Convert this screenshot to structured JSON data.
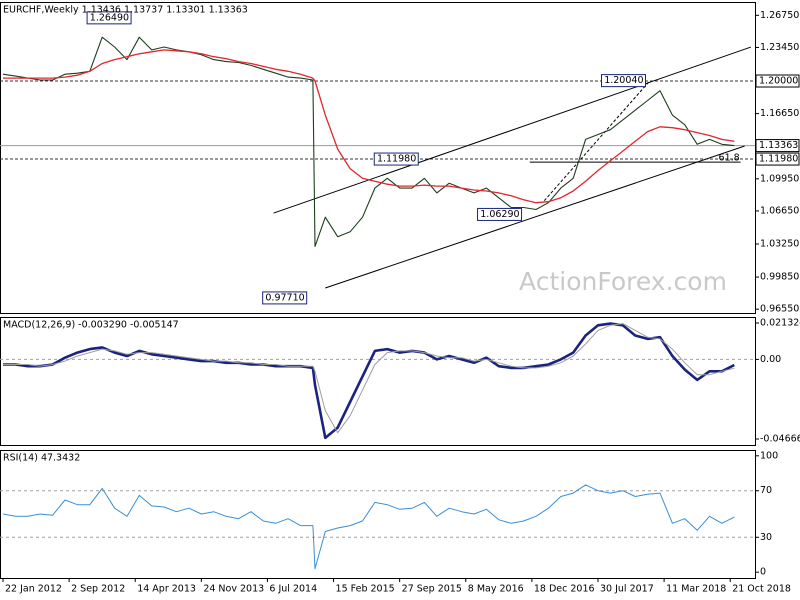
{
  "chart_data": [
    {
      "type": "line",
      "title": "EURCHF,Weekly  1.13436 1.13737 1.13301 1.13363",
      "watermark": "ActionForex.com",
      "x": [
        0,
        6,
        12,
        18,
        24,
        30,
        36,
        42,
        48,
        54,
        60,
        66,
        72,
        78,
        84,
        90,
        96,
        102,
        108,
        114,
        120,
        126,
        132,
        138,
        144,
        150,
        151,
        156,
        162,
        168,
        174,
        180,
        186,
        192,
        198,
        204,
        210,
        216,
        222,
        228,
        234,
        240,
        246,
        252,
        258,
        264,
        270,
        276,
        282,
        288,
        294,
        300,
        306,
        312,
        318,
        324,
        330,
        336,
        342,
        348,
        354
      ],
      "xlim": [
        -1.45,
        364
      ],
      "ylim": [
        0.9616,
        1.2812
      ],
      "yticks": [
        {
          "value": 1.2675,
          "label": "1.26750"
        },
        {
          "value": 1.2345,
          "label": "1.23450"
        },
        {
          "value": 1.1665,
          "label": "1.16650"
        },
        {
          "value": 1.0995,
          "label": "1.09950"
        },
        {
          "value": 1.0665,
          "label": "1.06650"
        },
        {
          "value": 1.0325,
          "label": "1.03250"
        },
        {
          "value": 0.9985,
          "label": "0.99850"
        },
        {
          "value": 0.9655,
          "label": "0.96550"
        }
      ],
      "markers": [
        {
          "value": 1.2,
          "label": "1.20000",
          "line": "dashed"
        },
        {
          "value": 1.13363,
          "label": "1.13363",
          "line": "solid"
        },
        {
          "value": 1.1198,
          "label": "1.11980",
          "line": "dashed"
        }
      ],
      "series": [
        {
          "color": "#1e3d1e",
          "values": [
            1.207,
            1.205,
            1.203,
            1.201,
            1.201,
            1.207,
            1.208,
            1.21,
            1.245,
            1.235,
            1.222,
            1.245,
            1.232,
            1.235,
            1.232,
            1.23,
            1.227,
            1.222,
            1.22,
            1.219,
            1.216,
            1.212,
            1.208,
            1.204,
            1.203,
            1.201,
            1.03,
            1.06,
            1.04,
            1.045,
            1.06,
            1.09,
            1.1,
            1.09,
            1.09,
            1.1,
            1.085,
            1.095,
            1.09,
            1.085,
            1.09,
            1.08,
            1.07,
            1.07,
            1.068,
            1.075,
            1.09,
            1.1,
            1.14,
            1.145,
            1.15,
            1.16,
            1.17,
            1.18,
            1.19,
            1.165,
            1.155,
            1.135,
            1.14,
            1.135,
            1.13363
          ]
        },
        {
          "color": "#e0282e",
          "values": [
            1.203,
            1.203,
            1.203,
            1.203,
            1.203,
            1.204,
            1.206,
            1.21,
            1.218,
            1.222,
            1.225,
            1.228,
            1.23,
            1.232,
            1.231,
            1.23,
            1.228,
            1.225,
            1.223,
            1.22,
            1.218,
            1.215,
            1.212,
            1.21,
            1.207,
            1.203,
            1.2,
            1.165,
            1.13,
            1.11,
            1.1,
            1.097,
            1.094,
            1.092,
            1.092,
            1.093,
            1.092,
            1.092,
            1.09,
            1.088,
            1.087,
            1.085,
            1.082,
            1.078,
            1.075,
            1.076,
            1.08,
            1.087,
            1.097,
            1.108,
            1.118,
            1.128,
            1.138,
            1.148,
            1.153,
            1.152,
            1.15,
            1.147,
            1.144,
            1.14,
            1.138
          ]
        }
      ],
      "trendlines": [
        {
          "style": "solid",
          "points": [
            [
              131,
              1.0643
            ],
            [
              362,
              1.2349
            ]
          ]
        },
        {
          "style": "solid",
          "points": [
            [
              156,
              0.9873
            ],
            [
              359,
              1.1332
            ]
          ]
        },
        {
          "style": "dashed",
          "points": [
            [
              262,
              1.077
            ],
            [
              313,
              1.2
            ]
          ]
        }
      ],
      "fib_line": {
        "label": "61.8",
        "price": 1.1167,
        "x": [
          255,
          357
        ]
      },
      "annotations": [
        {
          "value": 1.2649,
          "label": "1.26490",
          "x": 62
        },
        {
          "value": 1.1198,
          "label": "1.11980",
          "x": 201
        },
        {
          "value": 1.2004,
          "label": "1.20040",
          "x": 311
        },
        {
          "value": 1.0629,
          "label": "1.06290",
          "x": 251
        },
        {
          "value": 0.9771,
          "label": "0.97710",
          "x": 147
        }
      ]
    },
    {
      "type": "line",
      "title": "MACD(12,26,9) -0.003290 -0.005147",
      "x": [
        0,
        6,
        12,
        18,
        24,
        30,
        36,
        42,
        48,
        54,
        60,
        66,
        72,
        78,
        84,
        90,
        96,
        102,
        108,
        114,
        120,
        126,
        132,
        138,
        144,
        150,
        151,
        156,
        162,
        168,
        174,
        180,
        186,
        192,
        198,
        204,
        210,
        216,
        222,
        228,
        234,
        240,
        246,
        252,
        258,
        264,
        270,
        276,
        282,
        288,
        294,
        300,
        306,
        312,
        318,
        324,
        330,
        336,
        342,
        348,
        354
      ],
      "xlim": [
        -1.45,
        364
      ],
      "ylim": [
        -0.05018,
        0.02484
      ],
      "yticks": [
        0.021324,
        {
          "value": 0,
          "label": "0.00"
        },
        -0.046663
      ],
      "levels": [
        0
      ],
      "series": [
        {
          "color": "#1a237e",
          "values": [
            -0.003,
            -0.003,
            -0.004,
            -0.004,
            -0.003,
            0.001,
            0.004,
            0.006,
            0.007,
            0.004,
            0.002,
            0.005,
            0.003,
            0.002,
            0.001,
            0,
            -0.001,
            -0.001,
            -0.002,
            -0.002,
            -0.003,
            -0.003,
            -0.004,
            -0.004,
            -0.004,
            -0.005,
            -0.015,
            -0.046,
            -0.04,
            -0.025,
            -0.01,
            0.005,
            0.006,
            0.004,
            0.005,
            0.004,
            0,
            0.002,
            0,
            -0.002,
            0.001,
            -0.004,
            -0.005,
            -0.005,
            -0.004,
            -0.003,
            0,
            0.004,
            0.014,
            0.02,
            0.021,
            0.02,
            0.014,
            0.012,
            0.013,
            0.002,
            -0.006,
            -0.012,
            -0.007,
            -0.007,
            -0.00329
          ]
        },
        {
          "color": "#9e9e9e",
          "values": [
            -0.003,
            -0.003,
            -0.003,
            -0.004,
            -0.003,
            -0.001,
            0.002,
            0.004,
            0.006,
            0.005,
            0.003,
            0.004,
            0.004,
            0.003,
            0.002,
            0.001,
            0,
            -0.001,
            -0.001,
            -0.002,
            -0.002,
            -0.003,
            -0.003,
            -0.004,
            -0.004,
            -0.004,
            -0.007,
            -0.03,
            -0.043,
            -0.033,
            -0.018,
            -0.003,
            0.004,
            0.005,
            0.005,
            0.004,
            0.002,
            0.001,
            0.001,
            -0.001,
            0,
            -0.002,
            -0.004,
            -0.005,
            -0.005,
            -0.004,
            -0.002,
            0.002,
            0.009,
            0.017,
            0.02,
            0.021,
            0.017,
            0.013,
            0.012,
            0.006,
            -0.002,
            -0.009,
            -0.009,
            -0.007,
            -0.005147
          ]
        }
      ]
    },
    {
      "type": "line",
      "title": "RSI(14) 47.3432",
      "x": [
        0,
        6,
        12,
        18,
        24,
        30,
        36,
        42,
        48,
        54,
        60,
        66,
        72,
        78,
        84,
        90,
        96,
        102,
        108,
        114,
        120,
        126,
        132,
        138,
        144,
        150,
        151,
        156,
        162,
        168,
        174,
        180,
        186,
        192,
        198,
        204,
        210,
        216,
        222,
        228,
        234,
        240,
        246,
        252,
        258,
        264,
        270,
        276,
        282,
        288,
        294,
        300,
        306,
        312,
        318,
        324,
        330,
        336,
        342,
        348,
        354
      ],
      "xlim": [
        -1.45,
        364
      ],
      "ylim": [
        -5,
        105
      ],
      "yticks": [
        100,
        70,
        30,
        0
      ],
      "levels": [
        70,
        30
      ],
      "xticks": [
        {
          "value": 0,
          "label": "22 Jan 2012"
        },
        {
          "value": 32,
          "label": "2 Sep 2012"
        },
        {
          "value": 64,
          "label": "14 Apr 2013"
        },
        {
          "value": 96,
          "label": "24 Nov 2013"
        },
        {
          "value": 128,
          "label": "6 Jul 2014"
        },
        {
          "value": 160,
          "label": "15 Feb 2015"
        },
        {
          "value": 192,
          "label": "27 Sep 2015"
        },
        {
          "value": 224,
          "label": "8 May 2016"
        },
        {
          "value": 256,
          "label": "18 Dec 2016"
        },
        {
          "value": 288,
          "label": "30 Jul 2017"
        },
        {
          "value": 320,
          "label": "11 Mar 2018"
        },
        {
          "value": 352,
          "label": "21 Oct 2018"
        }
      ],
      "series": [
        {
          "color": "#3a8fd6",
          "values": [
            50,
            48,
            48,
            50,
            49,
            62,
            58,
            58,
            72,
            55,
            48,
            66,
            57,
            56,
            52,
            55,
            50,
            52,
            48,
            46,
            52,
            44,
            42,
            46,
            40,
            40,
            3,
            35,
            38,
            40,
            44,
            60,
            58,
            54,
            55,
            60,
            48,
            55,
            52,
            50,
            54,
            45,
            42,
            44,
            48,
            55,
            65,
            68,
            75,
            70,
            68,
            70,
            65,
            67,
            68,
            42,
            46,
            36,
            48,
            42,
            47.3432
          ]
        }
      ]
    }
  ]
}
